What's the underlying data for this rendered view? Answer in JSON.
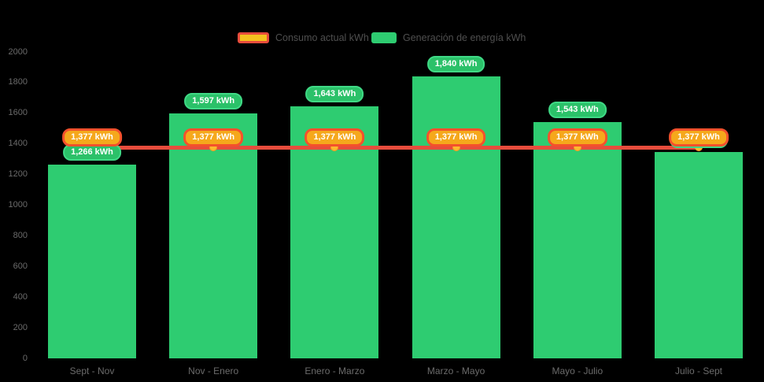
{
  "legend": {
    "consumo_label": "Consumo actual kWh",
    "generacion_label": "Generación de energía kWh"
  },
  "colors": {
    "background": "#000000",
    "bar_green": "#2ECC71",
    "badge_green_fill": "#2BC169",
    "badge_green_border": "#3FD985",
    "line_red": "#E74C3C",
    "badge_orange_fill": "#F5A81C",
    "badge_orange_border": "#F4512C",
    "marker_fill": "#FDB92E",
    "marker_border": "#F59A23",
    "legend_swatch_yellow": "#F5C11E",
    "axis_text": "#6B6B6B",
    "legend_text": "#4F4F4F"
  },
  "chart_data": {
    "type": "bar",
    "title": "",
    "xlabel": "",
    "ylabel": "",
    "categories": [
      "Sept - Nov",
      "Nov - Enero",
      "Enero - Marzo",
      "Marzo - Mayo",
      "Mayo - Julio",
      "Julio - Sept"
    ],
    "series": [
      {
        "name": "Generación de energía kWh",
        "type": "bar",
        "color": "#2ECC71",
        "values": [
          1266,
          1597,
          1643,
          1840,
          1543,
          1345
        ],
        "labels": [
          "1,266 kWh",
          "1,597 kWh",
          "1,643 kWh",
          "1,840 kWh",
          "1,543 kWh",
          "1,345 kWh"
        ]
      },
      {
        "name": "Consumo actual kWh",
        "type": "line",
        "color": "#E74C3C",
        "values": [
          1377,
          1377,
          1377,
          1377,
          1377,
          1377
        ],
        "labels": [
          "1,377 kWh",
          "1,377 kWh",
          "1,377 kWh",
          "1,377 kWh",
          "1,377 kWh",
          "1,377 kWh"
        ]
      }
    ],
    "ylim": [
      0,
      2000
    ],
    "ytick_step": 200,
    "ytick_labels": [
      "0",
      "200",
      "400",
      "600",
      "800",
      "1000",
      "1200",
      "1400",
      "1600",
      "1800",
      "2000"
    ],
    "grid": false,
    "legend_position": "top"
  }
}
